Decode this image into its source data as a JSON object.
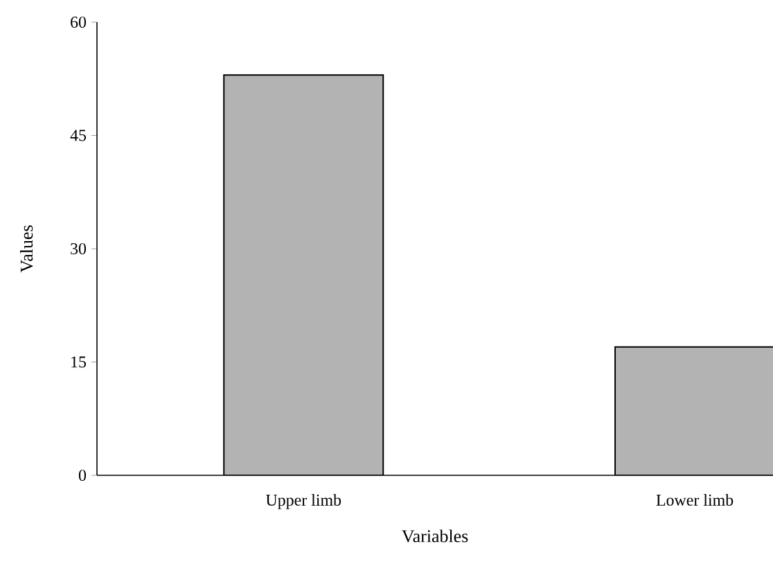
{
  "chart_data": {
    "type": "bar",
    "xlabel": "Variables",
    "ylabel": "Values",
    "categories": [
      "Upper limb",
      "Lower limb"
    ],
    "values": [
      53,
      17
    ],
    "color": "#b3b3b3",
    "ylim": [
      0,
      60
    ],
    "yticks": [
      0,
      15,
      30,
      45,
      60
    ],
    "grid": false
  }
}
